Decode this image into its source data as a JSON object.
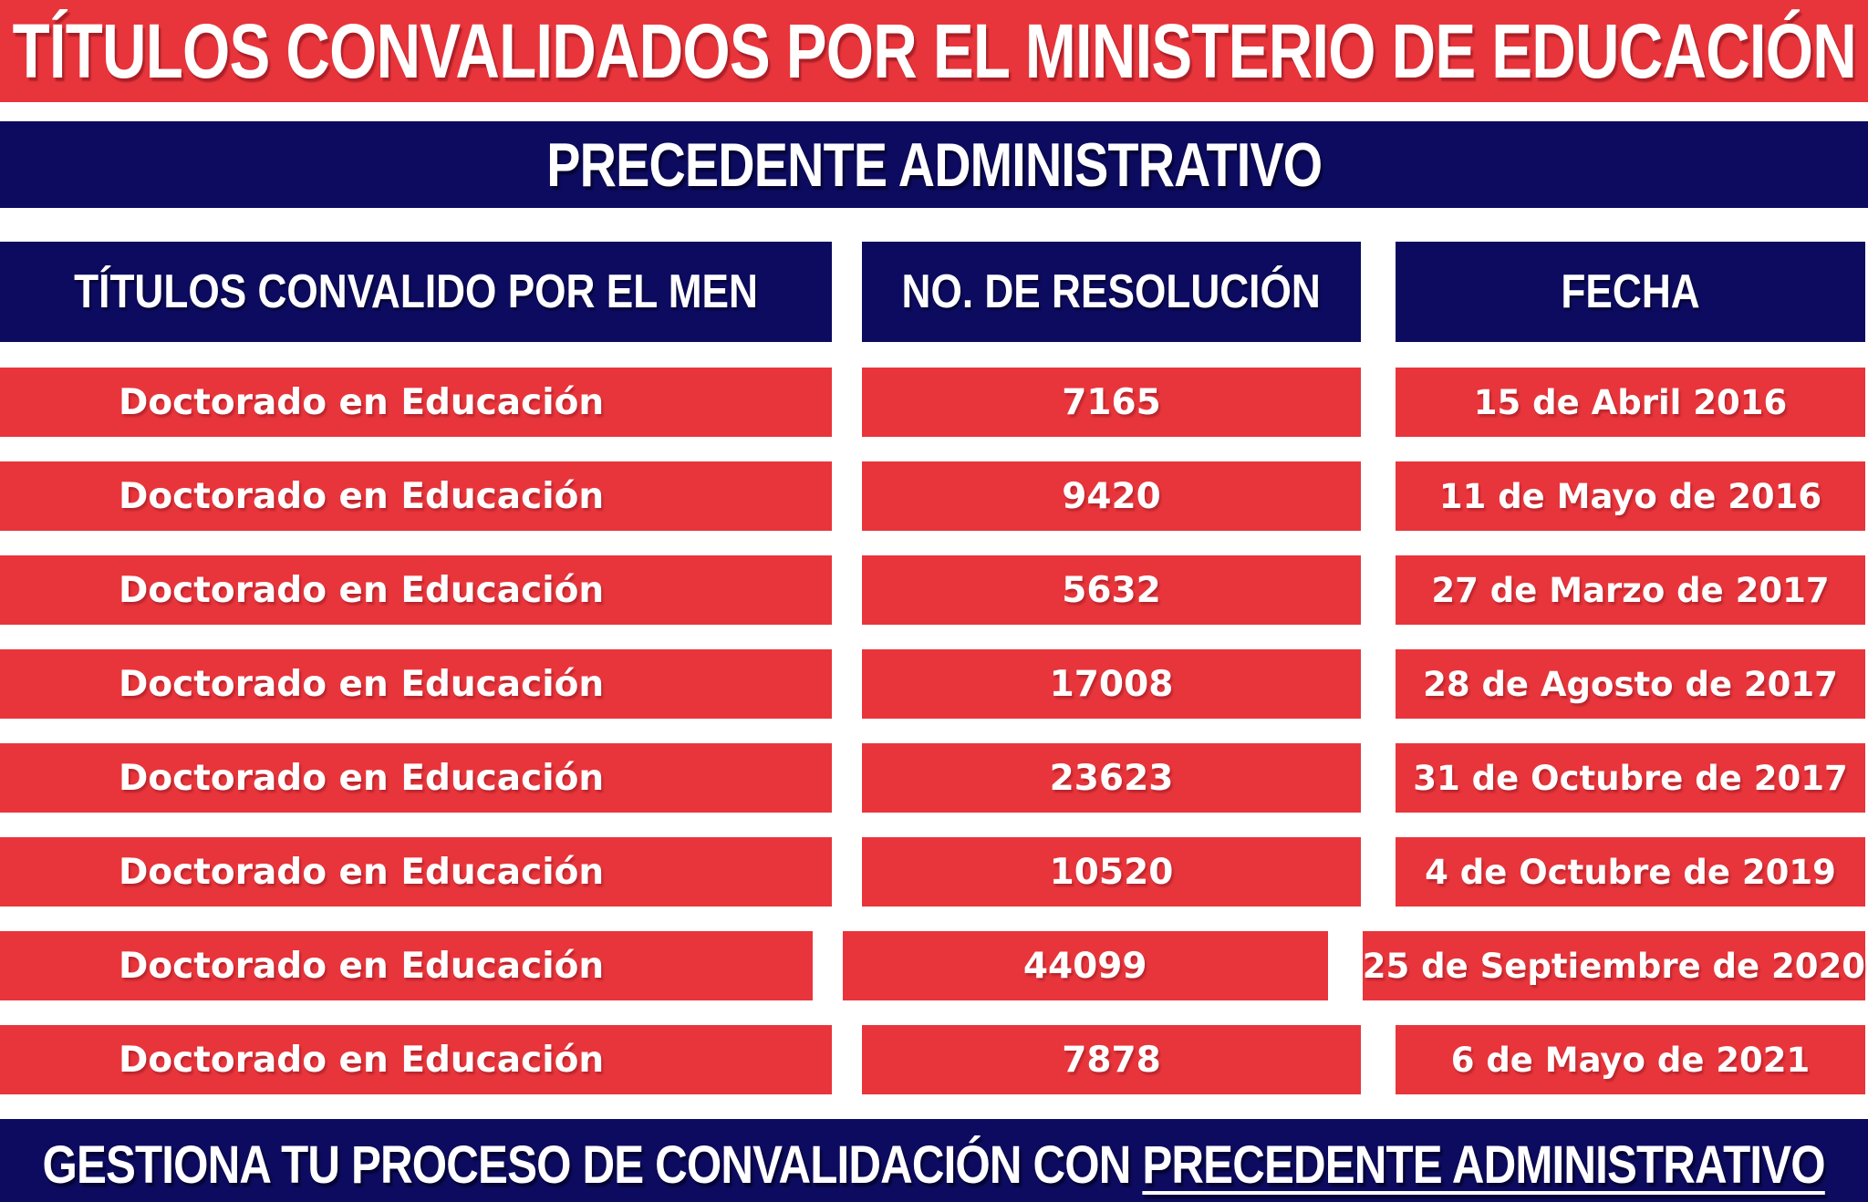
{
  "title": "TÍTULOS CONVALIDADOS POR EL MINISTERIO DE EDUCACIÓN",
  "subtitle": "PRECEDENTE ADMINISTRATIVO",
  "table": {
    "headers": [
      "TÍTULOS CONVALIDO POR EL MEN",
      "NO. DE RESOLUCIÓN",
      "FECHA"
    ],
    "rows": [
      {
        "titulo": "Doctorado en Educación",
        "resolucion": "7165",
        "fecha": "15 de Abril 2016"
      },
      {
        "titulo": "Doctorado en Educación",
        "resolucion": "9420",
        "fecha": "11 de Mayo de 2016"
      },
      {
        "titulo": "Doctorado en Educación",
        "resolucion": "5632",
        "fecha": "27 de Marzo de 2017"
      },
      {
        "titulo": "Doctorado en Educación",
        "resolucion": "17008",
        "fecha": "28 de Agosto de 2017"
      },
      {
        "titulo": "Doctorado en Educación",
        "resolucion": "23623",
        "fecha": "31 de Octubre de 2017"
      },
      {
        "titulo": "Doctorado en Educación",
        "resolucion": "10520",
        "fecha": "4 de Octubre de 2019"
      },
      {
        "titulo": "Doctorado en Educación",
        "resolucion": "44099",
        "fecha": "25 de Septiembre de 2020"
      },
      {
        "titulo": "Doctorado en Educación",
        "resolucion": "7878",
        "fecha": "6 de Mayo de 2021"
      }
    ]
  },
  "footer": {
    "prefix": "GESTIONA TU PROCESO DE CONVALIDACIÓN CON ",
    "underlined": "PRECEDENTE ADMINISTRATIVO"
  },
  "colors": {
    "red": "#E8353B",
    "navy": "#0D0B5F",
    "text": "#FFFFFF",
    "bottom_edge_line": "#BFC3DC"
  }
}
